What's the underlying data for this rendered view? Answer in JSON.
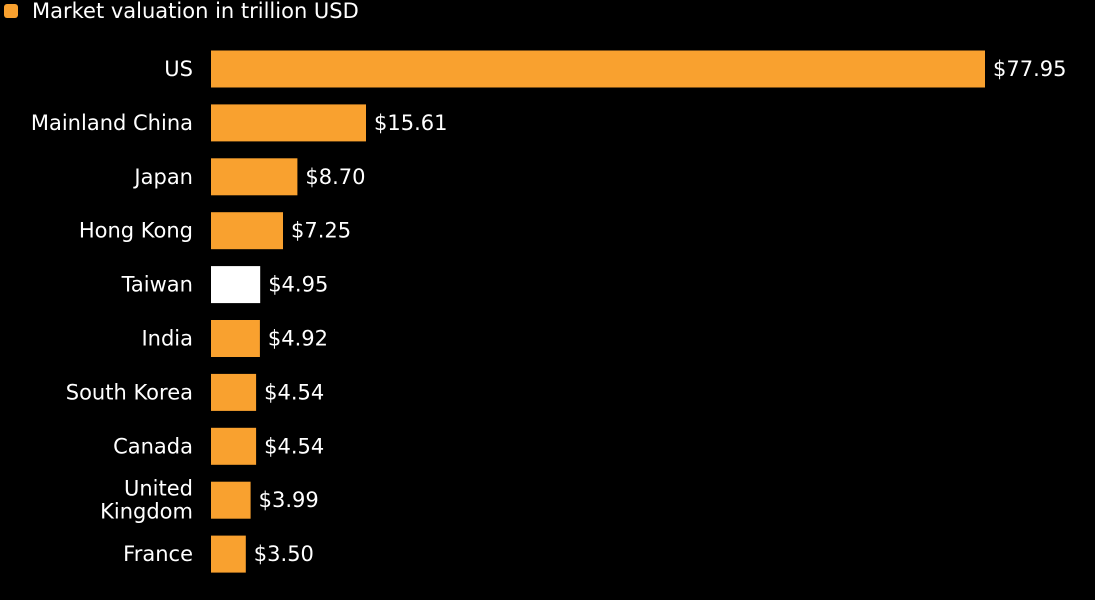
{
  "legend": {
    "label": "Market valuation in trillion USD",
    "color": "#f9a12f"
  },
  "chart_data": {
    "type": "bar",
    "orientation": "horizontal",
    "categories": [
      "US",
      "Mainland China",
      "Japan",
      "Hong Kong",
      "Taiwan",
      "India",
      "South Korea",
      "Canada",
      "United Kingdom",
      "France"
    ],
    "category_label_lines": [
      [
        "US"
      ],
      [
        "Mainland China"
      ],
      [
        "Japan"
      ],
      [
        "Hong Kong"
      ],
      [
        "Taiwan"
      ],
      [
        "India"
      ],
      [
        "South Korea"
      ],
      [
        "Canada"
      ],
      [
        "United",
        "Kingdom"
      ],
      [
        "France"
      ]
    ],
    "series": [
      {
        "name": "Market valuation in trillion USD",
        "values": [
          77.95,
          15.61,
          8.7,
          7.25,
          4.95,
          4.92,
          4.54,
          4.54,
          3.99,
          3.5
        ]
      }
    ],
    "value_labels": [
      "$77.95",
      "$15.61",
      "$8.70",
      "$7.25",
      "$4.95",
      "$4.92",
      "$4.54",
      "$4.54",
      "$3.99",
      "$3.50"
    ],
    "bar_colors": [
      "#f9a12f",
      "#f9a12f",
      "#f9a12f",
      "#f9a12f",
      "#ffffff",
      "#f9a12f",
      "#f9a12f",
      "#f9a12f",
      "#f9a12f",
      "#f9a12f"
    ],
    "highlight_category": "Taiwan",
    "xlim": [
      0,
      77.95
    ],
    "grid": false,
    "legend_position": "top-left",
    "background": "#000000"
  }
}
